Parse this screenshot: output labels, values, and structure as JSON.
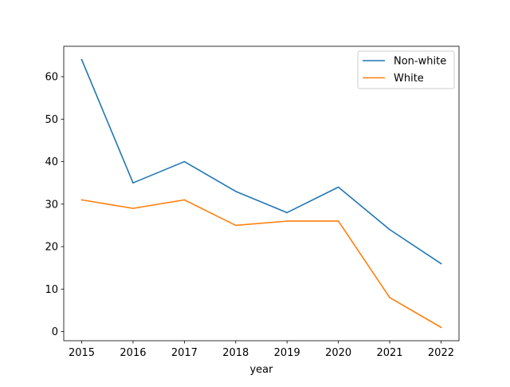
{
  "chart_data": {
    "type": "line",
    "x": [
      2015,
      2016,
      2017,
      2018,
      2019,
      2020,
      2021,
      2022
    ],
    "series": [
      {
        "name": "Non-white",
        "values": [
          64,
          35,
          40,
          33,
          28,
          34,
          24,
          16
        ],
        "color": "#1f77b4"
      },
      {
        "name": "White",
        "values": [
          31,
          29,
          31,
          25,
          26,
          26,
          8,
          1
        ],
        "color": "#ff7f0e"
      }
    ],
    "xlabel": "year",
    "ylabel": "",
    "xticks": [
      "2015",
      "2016",
      "2017",
      "2018",
      "2019",
      "2020",
      "2021",
      "2022"
    ],
    "yticks": [
      "0",
      "10",
      "20",
      "30",
      "40",
      "50",
      "60"
    ],
    "xlim": [
      2014.65,
      2022.35
    ],
    "ylim": [
      -2.15,
      67.15
    ],
    "grid": false,
    "legend_position": "top-right"
  }
}
